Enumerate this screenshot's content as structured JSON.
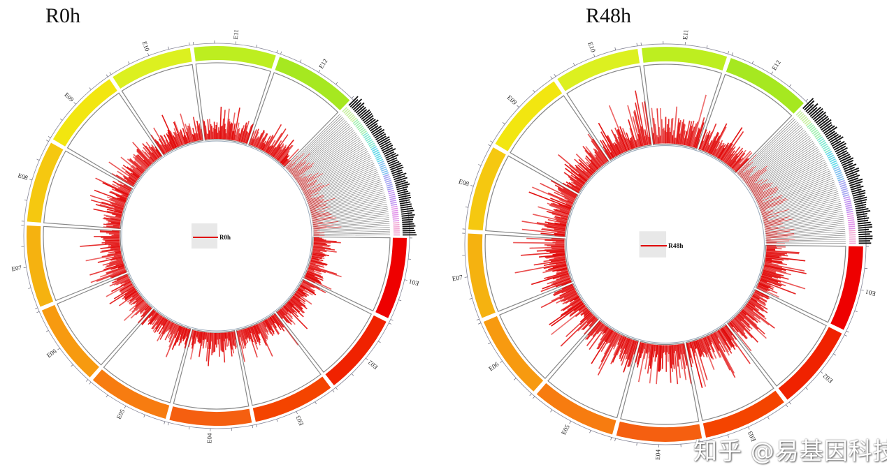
{
  "chart_data": [
    {
      "type": "circos",
      "title": "R0h",
      "legend": {
        "label": "R0h",
        "placement": "center",
        "color": "#e00000"
      },
      "segments": [
        {
          "label": "E01",
          "color": "#ee0000",
          "bar_level": 0.45
        },
        {
          "label": "E02",
          "color": "#f02200",
          "bar_level": 0.5
        },
        {
          "label": "E03",
          "color": "#f44400",
          "bar_level": 0.55
        },
        {
          "label": "E04",
          "color": "#f55f10",
          "bar_level": 0.5
        },
        {
          "label": "E05",
          "color": "#f77c10",
          "bar_level": 0.5
        },
        {
          "label": "E06",
          "color": "#f79a10",
          "bar_level": 0.45
        },
        {
          "label": "E07",
          "color": "#f5b210",
          "bar_level": 0.55
        },
        {
          "label": "E08",
          "color": "#f5c810",
          "bar_level": 0.5
        },
        {
          "label": "E09",
          "color": "#f2e610",
          "bar_level": 0.55
        },
        {
          "label": "E10",
          "color": "#dcf020",
          "bar_level": 0.5
        },
        {
          "label": "E11",
          "color": "#bdee20",
          "bar_level": 0.55
        },
        {
          "label": "E12",
          "color": "#a6e820",
          "bar_level": 0.45
        }
      ],
      "track_color": "#e00000"
    },
    {
      "type": "circos",
      "title": "R48h",
      "legend": {
        "label": "R48h",
        "placement": "center",
        "color": "#e00000"
      },
      "segments": [
        {
          "label": "E01",
          "color": "#ee0000",
          "bar_level": 0.6
        },
        {
          "label": "E02",
          "color": "#f02200",
          "bar_level": 0.65
        },
        {
          "label": "E03",
          "color": "#f44400",
          "bar_level": 0.7
        },
        {
          "label": "E04",
          "color": "#f55f10",
          "bar_level": 0.75
        },
        {
          "label": "E05",
          "color": "#f77c10",
          "bar_level": 0.65
        },
        {
          "label": "E06",
          "color": "#f79a10",
          "bar_level": 0.6
        },
        {
          "label": "E07",
          "color": "#f5b210",
          "bar_level": 0.7
        },
        {
          "label": "E08",
          "color": "#f5c810",
          "bar_level": 0.65
        },
        {
          "label": "E09",
          "color": "#f2e610",
          "bar_level": 0.65
        },
        {
          "label": "E10",
          "color": "#dcf020",
          "bar_level": 0.7
        },
        {
          "label": "E11",
          "color": "#bdee20",
          "bar_level": 0.75
        },
        {
          "label": "E12",
          "color": "#a6e820",
          "bar_level": 0.6
        }
      ],
      "track_color": "#e00000"
    }
  ],
  "watermark": "知乎 @易基因科技"
}
